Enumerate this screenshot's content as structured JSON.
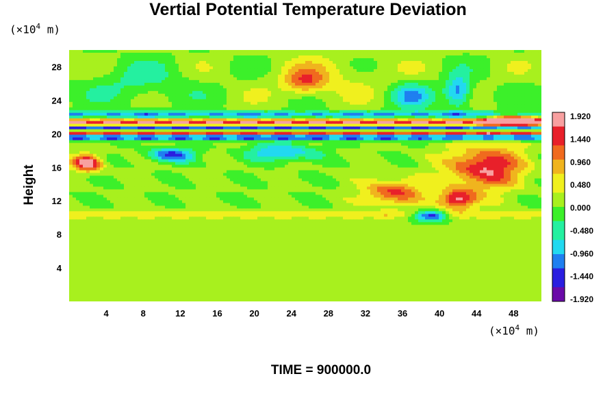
{
  "chart_data": {
    "type": "heatmap",
    "title": "Vertial Potential Temperature Deviation",
    "ylabel": "Height",
    "xlabel": "",
    "y_unit": {
      "prefix": "(×10",
      "exp": "4",
      "suffix": " m)"
    },
    "x_unit": {
      "prefix": "(×10",
      "exp": "4",
      "suffix": " m)"
    },
    "xlim": [
      0,
      51
    ],
    "ylim": [
      0,
      30
    ],
    "x_ticks": [
      "4",
      "8",
      "12",
      "16",
      "20",
      "24",
      "28",
      "32",
      "36",
      "40",
      "44",
      "48"
    ],
    "y_ticks": [
      "28",
      "24",
      "20",
      "16",
      "12",
      "8",
      "4"
    ],
    "x_tick_values": [
      4,
      8,
      12,
      16,
      20,
      24,
      28,
      32,
      36,
      40,
      44,
      48
    ],
    "y_tick_values": [
      28,
      24,
      20,
      16,
      12,
      8,
      4
    ],
    "colorbar": {
      "labels": [
        "1.920",
        "1.440",
        "0.960",
        "0.480",
        "0.000",
        "-0.480",
        "-0.960",
        "-1.440",
        "-1.920"
      ],
      "values": [
        1.92,
        1.44,
        0.96,
        0.48,
        0.0,
        -0.48,
        -0.96,
        -1.44,
        -1.92
      ],
      "min": -1.92,
      "max": 1.92
    },
    "colormap": [
      "#6a0aa8",
      "#2a1ee0",
      "#1f7ff0",
      "#22d9f0",
      "#24f0a0",
      "#3cf02a",
      "#a8f01e",
      "#f0f01e",
      "#f0b41e",
      "#f06a1e",
      "#e8202a",
      "#f8a0a0"
    ],
    "features": [
      {
        "x": 25.5,
        "y": 26.2,
        "sx": 2.2,
        "sy": 1.5,
        "v": 1.0
      },
      {
        "x": 28,
        "y": 27,
        "sx": 6,
        "sy": 2.5,
        "v": 0.35
      },
      {
        "x": 7.5,
        "y": 26,
        "sx": 5,
        "sy": 2.5,
        "v": -0.45
      },
      {
        "x": 42,
        "y": 25,
        "sx": 1.4,
        "sy": 1.8,
        "v": -1.3
      },
      {
        "x": 37,
        "y": 24.5,
        "sx": 2.2,
        "sy": 1.5,
        "v": -0.9
      },
      {
        "x": 11,
        "y": 17.5,
        "sx": 2.5,
        "sy": 0.8,
        "v": -1.4
      },
      {
        "x": 23,
        "y": 17.8,
        "sx": 3.5,
        "sy": 1.0,
        "v": -1.1
      },
      {
        "x": 2,
        "y": 16.5,
        "sx": 1.5,
        "sy": 1.0,
        "v": 1.9
      },
      {
        "x": 39,
        "y": 10.2,
        "sx": 1.8,
        "sy": 0.6,
        "v": -1.9
      },
      {
        "x": 45,
        "y": 16,
        "sx": 4,
        "sy": 2.5,
        "v": 1.6
      },
      {
        "x": 35,
        "y": 13,
        "sx": 3,
        "sy": 1.5,
        "v": 1.3
      },
      {
        "x": 42,
        "y": 12.2,
        "sx": 2,
        "sy": 1.2,
        "v": 1.7
      },
      {
        "x": 48,
        "y": 21.6,
        "sx": 3,
        "sy": 0.7,
        "v": 1.9
      }
    ],
    "bands": [
      {
        "y": 21.3,
        "v": 1.9,
        "width": 0.45
      },
      {
        "y": 20.7,
        "v": -1.9,
        "width": 0.35
      },
      {
        "y": 20.1,
        "v": 1.9,
        "width": 0.3
      },
      {
        "y": 19.6,
        "v": -1.9,
        "width": 0.35
      },
      {
        "y": 22.3,
        "v": -1.2,
        "width": 0.4
      },
      {
        "y": 10.3,
        "v": 0.55,
        "width": 0.5
      }
    ]
  },
  "footer": {
    "time_label": "TIME = 900000.0"
  }
}
